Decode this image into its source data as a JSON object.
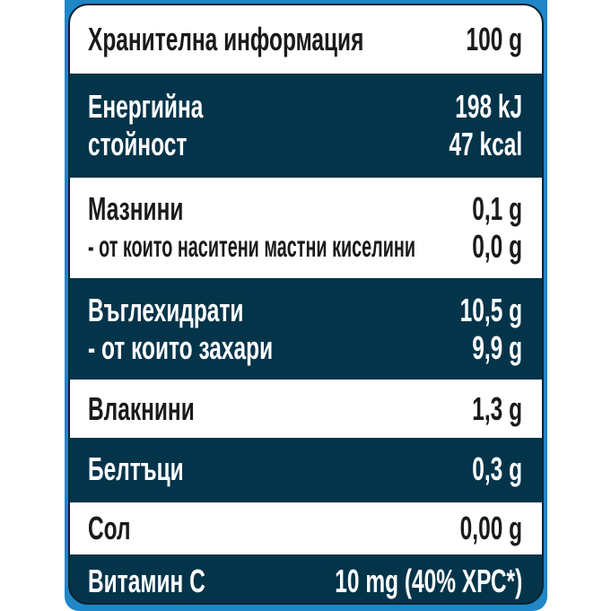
{
  "header": {
    "label": "Хранителна информация",
    "value": "100 g"
  },
  "energy": {
    "label1": "Енергийна",
    "label2": "стойност",
    "value1": "198 kJ",
    "value2": "47 kcal"
  },
  "fat": {
    "label1": "Мазнини",
    "label2": "- от които наситени мастни киселини",
    "value1": "0,1 g",
    "value2": "0,0 g"
  },
  "carbs": {
    "label1": "Въглехидрати",
    "label2": "- от които захари",
    "value1": "10,5 g",
    "value2": "9,9 g"
  },
  "fibre": {
    "label": "Влакнини",
    "value": "1,3 g"
  },
  "protein": {
    "label": "Белтъци",
    "value": "0,3 g"
  },
  "salt": {
    "label": "Сол",
    "value": "0,00 g"
  },
  "vitamin_c": {
    "label": "Витамин С",
    "value": "10 mg (40% ХРС*)"
  },
  "colors": {
    "dark": "#04344a",
    "accent": "#1f86c8"
  }
}
